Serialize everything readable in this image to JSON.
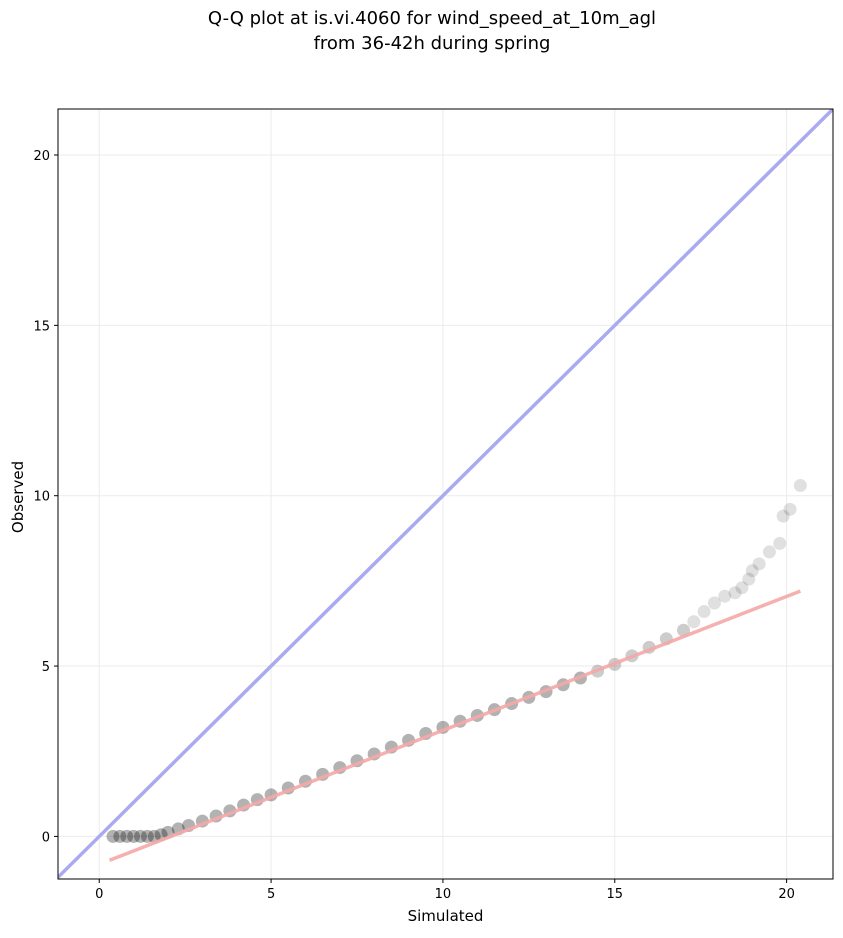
{
  "chart_data": {
    "type": "scatter",
    "title_lines": [
      "Q-Q plot at is.vi.4060 for wind_speed_at_10m_agl",
      "from 36-42h during spring"
    ],
    "xlabel": "Simulated",
    "ylabel": "Observed",
    "xlim": [
      -1.2,
      21.35
    ],
    "ylim": [
      -1.25,
      21.35
    ],
    "xticks": [
      0,
      5,
      10,
      15,
      20
    ],
    "yticks": [
      0,
      5,
      10,
      15,
      20
    ],
    "x_tick_labels": [
      "0",
      "5",
      "10",
      "15",
      "20"
    ],
    "y_tick_labels": [
      "0",
      "5",
      "10",
      "15",
      "20"
    ],
    "grid": true,
    "identity_line": {
      "color": "#aaaaf0",
      "points": [
        [
          -1.2,
          -1.2
        ],
        [
          21.35,
          21.35
        ]
      ]
    },
    "fit_line": {
      "color": "#f4a7a7",
      "points": [
        [
          0.3,
          -0.7
        ],
        [
          20.4,
          7.2
        ]
      ]
    },
    "marker_color": "#000000",
    "quantiles": {
      "x": [
        0.4,
        0.6,
        0.8,
        1.0,
        1.2,
        1.4,
        1.6,
        1.8,
        2.0,
        2.3,
        2.6,
        3.0,
        3.4,
        3.8,
        4.2,
        4.6,
        5.0,
        5.5,
        6.0,
        6.5,
        7.0,
        7.5,
        8.0,
        8.5,
        9.0,
        9.5,
        10.0,
        10.5,
        11.0,
        11.5,
        12.0,
        12.5,
        13.0,
        13.5,
        14.0,
        14.5,
        15.0,
        15.5,
        16.0,
        16.5,
        17.0,
        17.3,
        17.6,
        17.9,
        18.2,
        18.5,
        18.7,
        18.9,
        19.0,
        19.2,
        19.5,
        19.8,
        19.9,
        20.1,
        20.4
      ],
      "y": [
        0.0,
        0.0,
        0.0,
        0.0,
        0.0,
        0.0,
        0.0,
        0.05,
        0.12,
        0.22,
        0.32,
        0.45,
        0.6,
        0.75,
        0.92,
        1.08,
        1.22,
        1.42,
        1.62,
        1.82,
        2.02,
        2.22,
        2.42,
        2.62,
        2.82,
        3.02,
        3.2,
        3.38,
        3.55,
        3.72,
        3.9,
        4.08,
        4.25,
        4.45,
        4.65,
        4.85,
        5.05,
        5.3,
        5.55,
        5.8,
        6.05,
        6.3,
        6.6,
        6.85,
        7.05,
        7.15,
        7.3,
        7.55,
        7.8,
        8.0,
        8.35,
        8.6,
        9.4,
        9.6,
        10.3
      ]
    }
  }
}
